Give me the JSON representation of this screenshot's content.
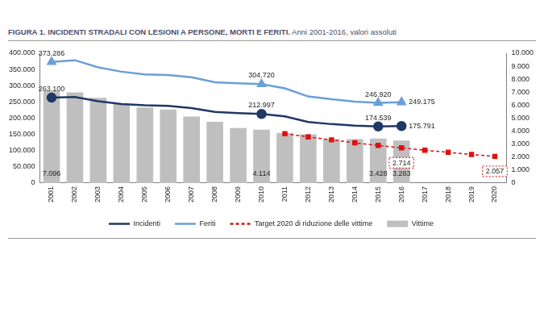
{
  "chart_data": {
    "type": "bar",
    "title": "FIGURA 1. INCIDENTI STRADALI CON LESIONI A PERSONE, MORTI E FERITI.",
    "subtitle": "Anni 2001-2016, valori assoluti",
    "categories": [
      "2001",
      "2002",
      "2003",
      "2004",
      "2005",
      "2006",
      "2007",
      "2008",
      "2009",
      "2010",
      "2011",
      "2012",
      "2013",
      "2014",
      "2015",
      "2016",
      "2017",
      "2018",
      "2019",
      "2020"
    ],
    "series": [
      {
        "name": "Vittime",
        "type": "bar",
        "axis": "y2",
        "color": "#bfbfbf",
        "data_labels": true,
        "values": [
          7096,
          6980,
          6563,
          6122,
          5818,
          5669,
          5131,
          4725,
          4237,
          4114,
          3860,
          3753,
          3401,
          3381,
          3428,
          3283,
          null,
          null,
          null,
          null
        ],
        "value_labels": [
          "7.096",
          null,
          null,
          null,
          null,
          null,
          null,
          null,
          null,
          "4.114",
          null,
          null,
          null,
          null,
          "3.428",
          "3.283",
          null,
          null,
          null,
          null
        ]
      },
      {
        "name": "Incidenti",
        "type": "line",
        "color": "#1f3864",
        "marker": "circle",
        "line_style": "solid",
        "data_labels": true,
        "values": [
          263100,
          265402,
          252271,
          243490,
          240011,
          238124,
          230871,
          218963,
          215405,
          212997,
          205638,
          188228,
          181660,
          177031,
          174539,
          175791,
          null,
          null,
          null,
          null
        ],
        "value_labels": [
          "263.100",
          null,
          null,
          null,
          null,
          null,
          null,
          null,
          null,
          "212.997",
          null,
          null,
          null,
          null,
          "174.539",
          "175.791",
          null,
          null,
          null,
          null
        ]
      },
      {
        "name": "Feriti",
        "type": "line",
        "color": "#6a9fd8",
        "marker": "triangle",
        "line_style": "solid",
        "data_labels": true,
        "values": [
          373286,
          378492,
          356475,
          343179,
          334858,
          332955,
          325850,
          310745,
          307258,
          304720,
          292019,
          266864,
          258093,
          251147,
          246920,
          249175,
          null,
          null,
          null,
          null
        ],
        "value_labels": [
          "373.286",
          null,
          null,
          null,
          null,
          null,
          null,
          null,
          null,
          "304.720",
          null,
          null,
          null,
          null,
          "246.920",
          "249.175",
          null,
          null,
          null,
          null
        ]
      },
      {
        "name": "Target 2020 di riduzione delle vittime",
        "type": "line",
        "axis": "y2",
        "color": "#e01010",
        "marker": "square",
        "line_style": "dashed",
        "data_labels": true,
        "values": [
          null,
          null,
          null,
          null,
          null,
          null,
          null,
          null,
          null,
          null,
          3800,
          3560,
          3330,
          3100,
          2900,
          2714,
          2530,
          2370,
          2200,
          2057
        ],
        "value_labels": [
          null,
          null,
          null,
          null,
          null,
          null,
          null,
          null,
          null,
          null,
          null,
          null,
          null,
          null,
          null,
          "2.714",
          null,
          null,
          null,
          "2.057"
        ]
      }
    ],
    "ylim": [
      0,
      400000
    ],
    "yticks": [
      0,
      {
        "value": 50000,
        "label": "50.000"
      },
      {
        "value": 100000,
        "label": "100.000"
      },
      {
        "value": 150000,
        "label": "150.000"
      },
      {
        "value": 200000,
        "label": "200.000"
      },
      {
        "value": 250000,
        "label": "250.000"
      },
      {
        "value": 300000,
        "label": "300.000"
      },
      {
        "value": 350000,
        "label": "350.000"
      },
      {
        "value": 400000,
        "label": "400.000"
      }
    ],
    "y2lim": [
      0,
      10000
    ],
    "y2ticks": [
      0,
      {
        "value": 1000,
        "label": "1.000"
      },
      {
        "value": 2000,
        "label": "2.000"
      },
      {
        "value": 3000,
        "label": "3.000"
      },
      {
        "value": 4000,
        "label": "4.000"
      },
      {
        "value": 5000,
        "label": "5.000"
      },
      {
        "value": 6000,
        "label": "6.000"
      },
      {
        "value": 7000,
        "label": "7.000"
      },
      {
        "value": 8000,
        "label": "8.000"
      },
      {
        "value": 9000,
        "label": "9.000"
      },
      {
        "value": 10000,
        "label": "10.000"
      }
    ],
    "grid": false,
    "legend": "bottom"
  }
}
